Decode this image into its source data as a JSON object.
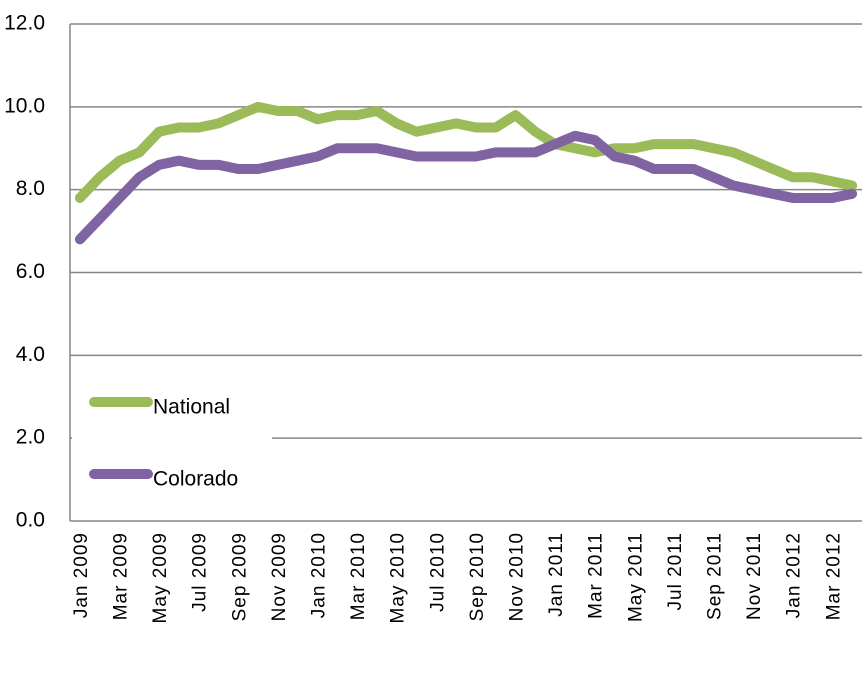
{
  "chart_data": {
    "type": "line",
    "categories": [
      "Jan 2009",
      null,
      "Mar 2009",
      null,
      "May 2009",
      null,
      "Jul 2009",
      null,
      "Sep 2009",
      null,
      "Nov 2009",
      null,
      "Jan 2010",
      null,
      "Mar 2010",
      null,
      "May 2010",
      null,
      "Jul 2010",
      null,
      "Sep 2010",
      null,
      "Nov 2010",
      null,
      "Jan 2011",
      null,
      "Mar 2011",
      null,
      "May 2011",
      null,
      "Jul 2011",
      null,
      "Sep 2011",
      null,
      "Nov 2011",
      null,
      "Jan 2012",
      null,
      "Mar 2012",
      null
    ],
    "series": [
      {
        "name": "National",
        "color": "#9bbb59",
        "values": [
          7.8,
          8.3,
          8.7,
          8.9,
          9.4,
          9.5,
          9.5,
          9.6,
          9.8,
          10.0,
          9.9,
          9.9,
          9.7,
          9.8,
          9.8,
          9.9,
          9.6,
          9.4,
          9.5,
          9.6,
          9.5,
          9.5,
          9.8,
          9.4,
          9.1,
          9.0,
          8.9,
          9.0,
          9.0,
          9.1,
          9.1,
          9.1,
          9.0,
          8.9,
          8.7,
          8.5,
          8.3,
          8.3,
          8.2,
          8.1
        ]
      },
      {
        "name": "Colorado",
        "color": "#8064a2",
        "values": [
          6.8,
          7.3,
          7.8,
          8.3,
          8.6,
          8.7,
          8.6,
          8.6,
          8.5,
          8.5,
          8.6,
          8.7,
          8.8,
          9.0,
          9.0,
          9.0,
          8.9,
          8.8,
          8.8,
          8.8,
          8.8,
          8.9,
          8.9,
          8.9,
          9.1,
          9.3,
          9.2,
          8.8,
          8.7,
          8.5,
          8.5,
          8.5,
          8.3,
          8.1,
          8.0,
          7.9,
          7.8,
          7.8,
          7.8,
          7.9
        ]
      }
    ],
    "ylim": [
      0,
      12
    ],
    "yticks": [
      {
        "value": 0,
        "label": "0.0"
      },
      {
        "value": 2,
        "label": "2.0"
      },
      {
        "value": 4,
        "label": "4.0"
      },
      {
        "value": 6,
        "label": "6.0"
      },
      {
        "value": 8,
        "label": "8.0"
      },
      {
        "value": 10,
        "label": "10.0"
      },
      {
        "value": 12,
        "label": "12.0"
      }
    ],
    "grid": true,
    "legend": "lower left"
  }
}
